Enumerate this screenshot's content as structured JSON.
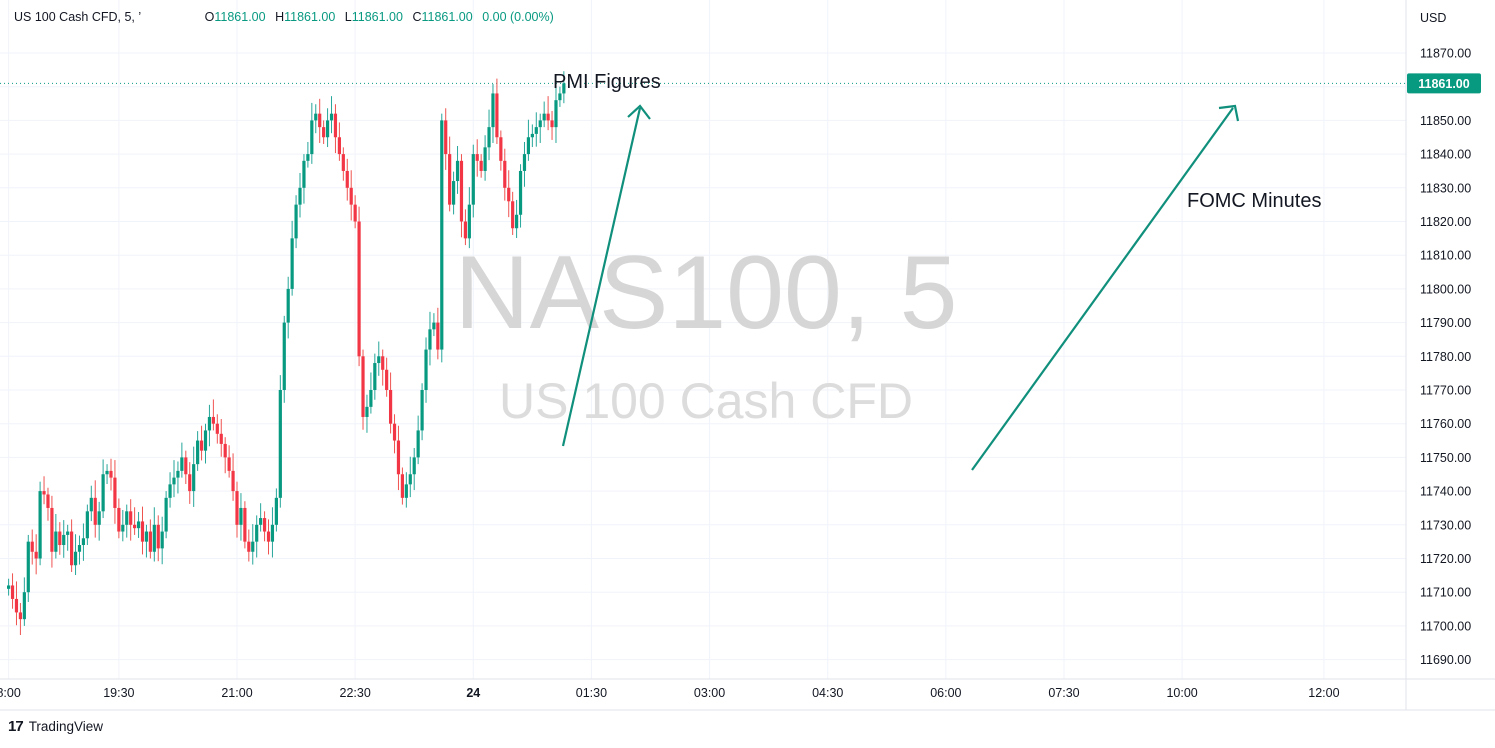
{
  "legend": {
    "symbol": "US 100 Cash CFD, 5, ’",
    "o_label": "O",
    "o_value": "11861.00",
    "h_label": "H",
    "h_value": "11861.00",
    "l_label": "L",
    "l_value": "11861.00",
    "c_label": "C",
    "c_value": "11861.00",
    "change": "0.00 (0.00%)"
  },
  "brand": {
    "logo": "17",
    "name": "TradingView"
  },
  "colors": {
    "up": "#089981",
    "down": "#f23645",
    "upWick": "#26a69a",
    "downWick": "#ef5350",
    "grid": "#f0f3fa",
    "price_tag": "#089981",
    "annotation_arrow": "#10907c"
  },
  "chart_data": {
    "type": "candlestick",
    "symbol": "NAS100, 5",
    "watermark_line1": "NAS100, 5",
    "watermark_line2": "US 100 Cash CFD",
    "currency": "USD",
    "ylim": [
      11685,
      11875
    ],
    "y_ticks": [
      11870,
      11860,
      11850,
      11840,
      11830,
      11820,
      11810,
      11800,
      11790,
      11780,
      11770,
      11760,
      11750,
      11740,
      11730,
      11720,
      11710,
      11700,
      11690
    ],
    "last_price": 11861.0,
    "last_price_label": "11861.00",
    "x_ticks": [
      "8:00",
      "19:30",
      "21:00",
      "22:30",
      "24",
      "01:30",
      "03:00",
      "04:30",
      "06:00",
      "07:30",
      "10:00",
      "12:00"
    ],
    "x_tick_slots": [
      0,
      28,
      58,
      88,
      118,
      148,
      178,
      208,
      238,
      268,
      298,
      334
    ],
    "annotations": [
      {
        "text": "PMI Figures"
      },
      {
        "text": "FOMC Minutes"
      }
    ],
    "closes": [
      11712,
      11708,
      11704,
      11702,
      11710,
      11725,
      11722,
      11720,
      11740,
      11739,
      11735,
      11722,
      11728,
      11724,
      11727,
      11728,
      11718,
      11722,
      11724,
      11726,
      11734,
      11738,
      11730,
      11734,
      11745,
      11746,
      11744,
      11735,
      11728,
      11730,
      11734,
      11730,
      11729,
      11731,
      11725,
      11728,
      11722,
      11730,
      11723,
      11728,
      11738,
      11742,
      11744,
      11746,
      11750,
      11745,
      11740,
      11748,
      11755,
      11752,
      11758,
      11762,
      11760,
      11757,
      11754,
      11750,
      11746,
      11740,
      11730,
      11735,
      11725,
      11722,
      11725,
      11730,
      11732,
      11728,
      11725,
      11730,
      11738,
      11770,
      11790,
      11800,
      11815,
      11825,
      11830,
      11838,
      11840,
      11850,
      11852,
      11848,
      11845,
      11850,
      11852,
      11845,
      11840,
      11835,
      11830,
      11825,
      11820,
      11780,
      11762,
      11765,
      11770,
      11778,
      11780,
      11776,
      11770,
      11760,
      11755,
      11745,
      11738,
      11742,
      11745,
      11750,
      11758,
      11770,
      11782,
      11788,
      11790,
      11782,
      11850,
      11840,
      11825,
      11832,
      11838,
      11820,
      11815,
      11825,
      11840,
      11838,
      11835,
      11842,
      11848,
      11858,
      11845,
      11838,
      11830,
      11826,
      11818,
      11822,
      11835,
      11840,
      11845,
      11846,
      11848,
      11850,
      11852,
      11850,
      11848,
      11856,
      11858,
      11861
    ]
  }
}
